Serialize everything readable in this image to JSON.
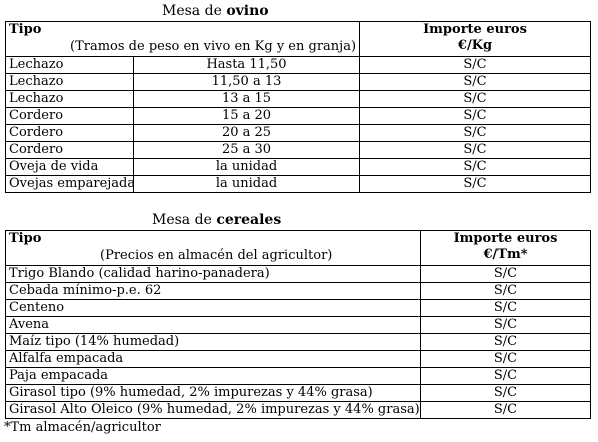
{
  "ovino": {
    "title_prefix": "Mesa de ",
    "title_bold": "ovino",
    "col_tipo": "Tipo",
    "col_tipo_sub": "(Tramos de peso en vivo en Kg y en granja)",
    "col_importe_1": "Importe euros",
    "col_importe_2": "€/Kg",
    "rows": [
      {
        "tipo": "Lechazo",
        "tramo": "Hasta 11,50",
        "importe": "S/C"
      },
      {
        "tipo": "Lechazo",
        "tramo": "11,50 a 13",
        "importe": "S/C"
      },
      {
        "tipo": "Lechazo",
        "tramo": "13 a 15",
        "importe": "S/C"
      },
      {
        "tipo": "Cordero",
        "tramo": "15 a 20",
        "importe": "S/C"
      },
      {
        "tipo": "Cordero",
        "tramo": "20 a 25",
        "importe": "S/C"
      },
      {
        "tipo": "Cordero",
        "tramo": "25 a 30",
        "importe": "S/C"
      },
      {
        "tipo": "Oveja de vida",
        "tramo": "la unidad",
        "importe": "S/C"
      },
      {
        "tipo": "Ovejas emparejadas",
        "tramo": "la unidad",
        "importe": "S/C"
      }
    ]
  },
  "cereales": {
    "title_prefix": "Mesa de ",
    "title_bold": "cereales",
    "col_tipo": "Tipo",
    "col_tipo_sub": "(Precios en almacén del agricultor)",
    "col_importe_1": "Importe euros",
    "col_importe_2": "€/Tm*",
    "rows": [
      {
        "tipo": "Trigo Blando (calidad harino-panadera)",
        "importe": "S/C"
      },
      {
        "tipo": "Cebada mínimo-p.e. 62",
        "importe": "S/C"
      },
      {
        "tipo": "Centeno",
        "importe": "S/C"
      },
      {
        "tipo": "Avena",
        "importe": "S/C"
      },
      {
        "tipo": "Maíz tipo (14% humedad)",
        "importe": "S/C"
      },
      {
        "tipo": "Alfalfa empacada",
        "importe": "S/C"
      },
      {
        "tipo": "Paja empacada",
        "importe": "S/C"
      },
      {
        "tipo": "Girasol tipo (9% humedad, 2% impurezas y 44% grasa)",
        "importe": "S/C"
      },
      {
        "tipo": "Girasol Alto Oleico (9% humedad, 2% impurezas y 44% grasa)",
        "importe": "S/C"
      }
    ],
    "footnote": "*Tm almacén/agricultor"
  }
}
